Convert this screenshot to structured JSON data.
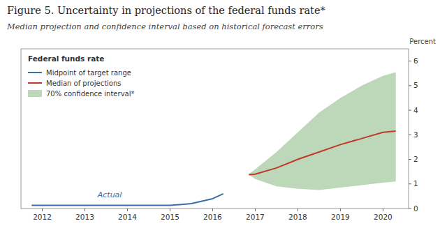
{
  "chart_data": {
    "type": "line",
    "title": "Figure 5. Uncertainty in projections of the federal funds rate*",
    "subtitle": "Median projection and confidence interval based on historical forecast errors",
    "ylabel": "Percent",
    "legend_title": "Federal funds rate",
    "legend": "upper left",
    "grid": false,
    "series": [
      {
        "name": "Midpoint of target range",
        "type": "line",
        "color": "#3a6ea8",
        "x": [
          2011.75,
          2012.0,
          2012.5,
          2013.0,
          2013.5,
          2014.0,
          2014.5,
          2015.0,
          2015.5,
          2016.0,
          2016.25
        ],
        "values": [
          0.125,
          0.125,
          0.125,
          0.125,
          0.125,
          0.125,
          0.125,
          0.125,
          0.2,
          0.4,
          0.6
        ]
      },
      {
        "name": "Median of projections",
        "type": "line",
        "color": "#c0392b",
        "x": [
          2016.85,
          2017.0,
          2017.5,
          2018.0,
          2018.5,
          2019.0,
          2019.5,
          2020.0,
          2020.3
        ],
        "values": [
          1.375,
          1.4,
          1.65,
          2.0,
          2.3,
          2.6,
          2.85,
          3.1,
          3.15
        ]
      },
      {
        "name": "70% confidence interval*",
        "type": "area",
        "color": "#b5d4b0",
        "x": [
          2016.85,
          2017.0,
          2017.5,
          2018.0,
          2018.5,
          2019.0,
          2019.5,
          2020.0,
          2020.3
        ],
        "upper": [
          1.4,
          1.6,
          2.3,
          3.1,
          3.9,
          4.5,
          5.0,
          5.4,
          5.55
        ],
        "lower": [
          1.375,
          1.2,
          0.9,
          0.8,
          0.75,
          0.85,
          0.95,
          1.05,
          1.1
        ]
      }
    ],
    "annotations": [
      {
        "text": "Actual",
        "x": 2013.3,
        "y": 0.45,
        "color": "#3a6ea8"
      }
    ],
    "xlim": [
      2011.5,
      2020.6
    ],
    "ylim": [
      0,
      6.5
    ],
    "xticks": [
      2012,
      2013,
      2014,
      2015,
      2016,
      2017,
      2018,
      2019,
      2020
    ],
    "yticks": [
      0,
      1,
      2,
      3,
      4,
      5,
      6
    ]
  }
}
